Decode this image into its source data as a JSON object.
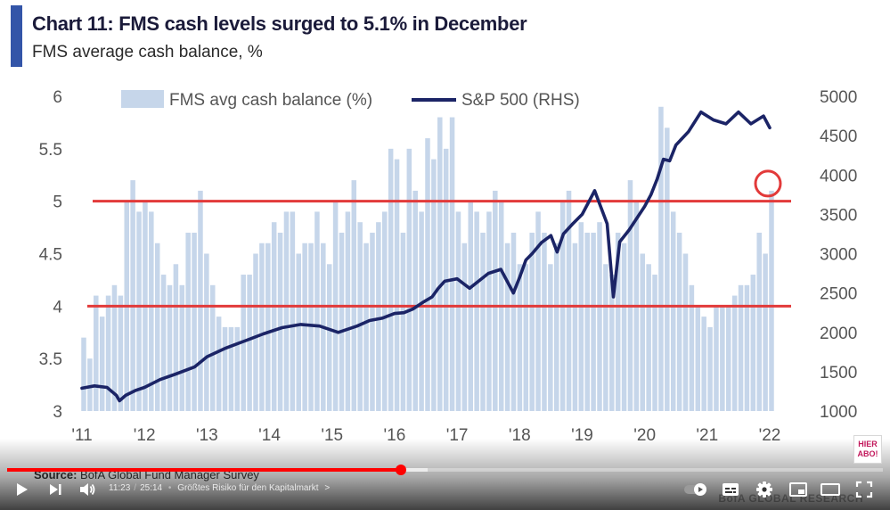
{
  "chart": {
    "title": "Chart 11: FMS cash levels surged to 5.1% in December",
    "subtitle": "FMS average cash balance, %",
    "source_label": "Source:",
    "source_text": "BofA Global Fund Manager Survey",
    "watermark": "BofA GLOBAL RESEARCH",
    "colors": {
      "accent": "#3355a8",
      "bars": "#c6d6ea",
      "line": "#1b2466",
      "red": "#e23a3a",
      "axis_text": "#555555"
    }
  },
  "chart_data": {
    "type": "bar",
    "title": "Chart 11: FMS cash levels surged to 5.1% in December",
    "subtitle": "FMS average cash balance, %",
    "legend": [
      "FMS avg cash balance (%)",
      "S&P 500 (RHS)"
    ],
    "x_ticks": [
      "'11",
      "'12",
      "'13",
      "'14",
      "'15",
      "'16",
      "'17",
      "'18",
      "'19",
      "'20",
      "'21",
      "'22"
    ],
    "y_left": {
      "range": [
        3,
        6
      ],
      "ticks": [
        "6",
        "5.5",
        "5",
        "4.5",
        "4",
        "3.5",
        "3"
      ]
    },
    "y_right": {
      "range": [
        1000,
        5000
      ],
      "ticks": [
        "5000",
        "4500",
        "4000",
        "3500",
        "3000",
        "2500",
        "2000",
        "1500",
        "1000"
      ]
    },
    "reference_lines_left": [
      5.0,
      4.0
    ],
    "highlight": {
      "x": "Dec 2021",
      "value": 5.1
    },
    "series": [
      {
        "name": "FMS avg cash balance (%)",
        "kind": "bar",
        "values": [
          3.7,
          3.5,
          4.1,
          3.9,
          4.1,
          4.2,
          4.1,
          5.0,
          5.2,
          4.9,
          5.0,
          4.9,
          4.6,
          4.3,
          4.2,
          4.4,
          4.2,
          4.7,
          4.7,
          5.1,
          4.5,
          4.2,
          3.9,
          3.8,
          3.8,
          3.8,
          4.3,
          4.3,
          4.5,
          4.6,
          4.6,
          4.8,
          4.7,
          4.9,
          4.9,
          4.5,
          4.6,
          4.6,
          4.9,
          4.6,
          4.4,
          5.0,
          4.7,
          4.9,
          5.2,
          4.8,
          4.6,
          4.7,
          4.8,
          4.9,
          5.5,
          5.4,
          4.7,
          5.5,
          5.1,
          4.9,
          5.6,
          5.4,
          5.8,
          5.5,
          5.8,
          4.9,
          4.6,
          5.0,
          4.9,
          4.7,
          4.9,
          5.1,
          5.0,
          4.6,
          4.7,
          4.4,
          4.4,
          4.7,
          4.9,
          4.7,
          4.4,
          4.6,
          5.0,
          5.1,
          4.6,
          4.8,
          4.7,
          4.7,
          4.8,
          4.4,
          4.3,
          4.7,
          4.6,
          5.2,
          5.0,
          4.5,
          4.4,
          4.3,
          5.9,
          5.7,
          4.9,
          4.7,
          4.5,
          4.2,
          4.0,
          3.9,
          3.8,
          4.0,
          4.0,
          4.0,
          4.1,
          4.2,
          4.2,
          4.3,
          4.7,
          4.5,
          5.1
        ]
      },
      {
        "name": "S&P 500 (RHS)",
        "kind": "line",
        "x": [
          0,
          0.2,
          0.4,
          0.55,
          0.6,
          0.7,
          0.85,
          1.0,
          1.25,
          1.5,
          1.8,
          2.0,
          2.3,
          2.6,
          2.9,
          3.2,
          3.5,
          3.8,
          4.1,
          4.4,
          4.6,
          4.8,
          5.0,
          5.15,
          5.3,
          5.45,
          5.6,
          5.7,
          5.8,
          6.0,
          6.2,
          6.5,
          6.7,
          6.9,
          7.0,
          7.1,
          7.2,
          7.35,
          7.5,
          7.6,
          7.7,
          7.85,
          8.0,
          8.2,
          8.4,
          8.5,
          8.6,
          8.75,
          9.0,
          9.1,
          9.15,
          9.2,
          9.3,
          9.4,
          9.5,
          9.7,
          9.9,
          10.1,
          10.3,
          10.5,
          10.7,
          10.9,
          11.0
        ],
        "values": [
          1290,
          1320,
          1300,
          1200,
          1130,
          1200,
          1260,
          1300,
          1400,
          1470,
          1560,
          1690,
          1800,
          1890,
          1980,
          2060,
          2100,
          2080,
          2000,
          2080,
          2150,
          2180,
          2240,
          2250,
          2300,
          2380,
          2450,
          2560,
          2650,
          2680,
          2560,
          2750,
          2800,
          2500,
          2700,
          2920,
          3000,
          3140,
          3230,
          3020,
          3250,
          3380,
          3500,
          3800,
          3380,
          2450,
          3150,
          3300,
          3600,
          3750,
          3850,
          3950,
          4200,
          4180,
          4380,
          4550,
          4800,
          4700,
          4650,
          4800,
          4650,
          4750,
          4600
        ]
      }
    ]
  },
  "player": {
    "time_current": "11:23",
    "time_separator": "/",
    "time_total": "25:14",
    "chapter_separator": "•",
    "chapter": "Größtes Risiko für den Kapitalmarkt",
    "chapter_chevron": ">",
    "progress_played_fraction": 0.45,
    "progress_buffered_fraction": 0.48,
    "progress_color": "#ff0000",
    "hier_abo_line1": "HIER",
    "hier_abo_line2": "ABO!",
    "icons": [
      "play-icon",
      "next-icon",
      "volume-icon",
      "autoplay-toggle-icon",
      "subtitles-icon",
      "settings-icon",
      "miniplayer-icon",
      "theater-icon",
      "fullscreen-icon"
    ]
  }
}
